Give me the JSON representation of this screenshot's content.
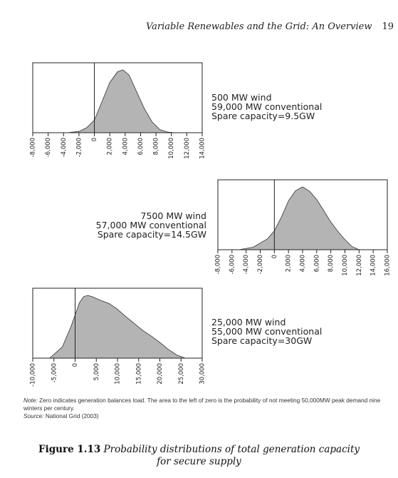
{
  "header": {
    "running_title": "Variable Renewables and the Grid: An Overview",
    "page_number": "19"
  },
  "panels": [
    {
      "id": "p1",
      "lines": [
        "500 MW wind",
        "59,000 MW conventional",
        "Spare capacity=9.5GW"
      ]
    },
    {
      "id": "p2",
      "lines": [
        "7500 MW wind",
        "57,000 MW conventional",
        "Spare capacity=14.5GW"
      ]
    },
    {
      "id": "p3",
      "lines": [
        "25,000 MW wind",
        "55,000 MW conventional",
        "Spare capacity=30GW"
      ]
    }
  ],
  "note": {
    "note_label": "Note:",
    "note_text": "Zero indicates generation balances load. The area to the left of zero is the probability of not meeting 50,000MW peak demand nine winters per century.",
    "source_label": "Source:",
    "source_text": "National Grid (2003)"
  },
  "caption": {
    "figure_label": "Figure 1.13",
    "line1": "Probability distributions of total generation capacity",
    "line2": "for secure supply"
  },
  "chart_data": [
    {
      "type": "area",
      "ticks": [
        "-8,000",
        "-6,000",
        "-4,000",
        "-2,000",
        "0",
        "2,000",
        "4,000",
        "6,000",
        "8,000",
        "10,000",
        "12,000",
        "14,000"
      ],
      "xlim": [
        -8000,
        14000
      ],
      "zero_line": 0,
      "x": [
        -3500,
        -2000,
        -1000,
        0,
        1000,
        2000,
        3000,
        3700,
        4500,
        5500,
        6500,
        7500,
        8500,
        9500,
        10500
      ],
      "y": [
        0,
        0.02,
        0.08,
        0.2,
        0.5,
        0.8,
        0.97,
        1.0,
        0.92,
        0.65,
        0.38,
        0.17,
        0.05,
        0.01,
        0
      ],
      "series": [
        {
          "name": "",
          "values": [
            0,
            0.02,
            0.08,
            0.2,
            0.5,
            0.8,
            0.97,
            1.0,
            0.92,
            0.65,
            0.38,
            0.17,
            0.05,
            0.01,
            0
          ]
        }
      ]
    },
    {
      "type": "area",
      "ticks": [
        "-8,000",
        "-6,000",
        "-4,000",
        "-2,000",
        "0",
        "2,000",
        "4,000",
        "6,000",
        "8,000",
        "10,000",
        "12,000",
        "14,000",
        "16,000"
      ],
      "xlim": [
        -8000,
        16000
      ],
      "zero_line": 0,
      "x": [
        -5000,
        -3000,
        -1000,
        0,
        1000,
        2000,
        3000,
        4000,
        5000,
        6000,
        7000,
        8000,
        9000,
        10000,
        11000,
        12000
      ],
      "y": [
        0,
        0.04,
        0.17,
        0.3,
        0.52,
        0.78,
        0.94,
        1.0,
        0.93,
        0.8,
        0.62,
        0.44,
        0.29,
        0.16,
        0.05,
        0
      ],
      "series": [
        {
          "name": "",
          "values": [
            0,
            0.04,
            0.17,
            0.3,
            0.52,
            0.78,
            0.94,
            1.0,
            0.93,
            0.8,
            0.62,
            0.44,
            0.29,
            0.16,
            0.05,
            0
          ]
        }
      ]
    },
    {
      "type": "area",
      "ticks": [
        "-10,000",
        "-5,000",
        "0",
        "5,000",
        "10,000",
        "15,000",
        "20,000",
        "25,000",
        "30,000"
      ],
      "xlim": [
        -10000,
        30000
      ],
      "zero_line": 0,
      "x": [
        -6000,
        -3000,
        -1000,
        1000,
        2000,
        3000,
        4000,
        5000,
        6000,
        8000,
        10000,
        12000,
        14000,
        16000,
        18000,
        20000,
        22000,
        24000,
        26000
      ],
      "y": [
        0,
        0.18,
        0.5,
        0.88,
        0.98,
        1.0,
        0.98,
        0.95,
        0.92,
        0.87,
        0.78,
        0.66,
        0.55,
        0.44,
        0.35,
        0.25,
        0.14,
        0.05,
        0
      ],
      "series": [
        {
          "name": "",
          "values": [
            0,
            0.18,
            0.5,
            0.88,
            0.98,
            1.0,
            0.98,
            0.95,
            0.92,
            0.87,
            0.78,
            0.66,
            0.55,
            0.44,
            0.35,
            0.25,
            0.14,
            0.05,
            0
          ]
        }
      ]
    }
  ]
}
